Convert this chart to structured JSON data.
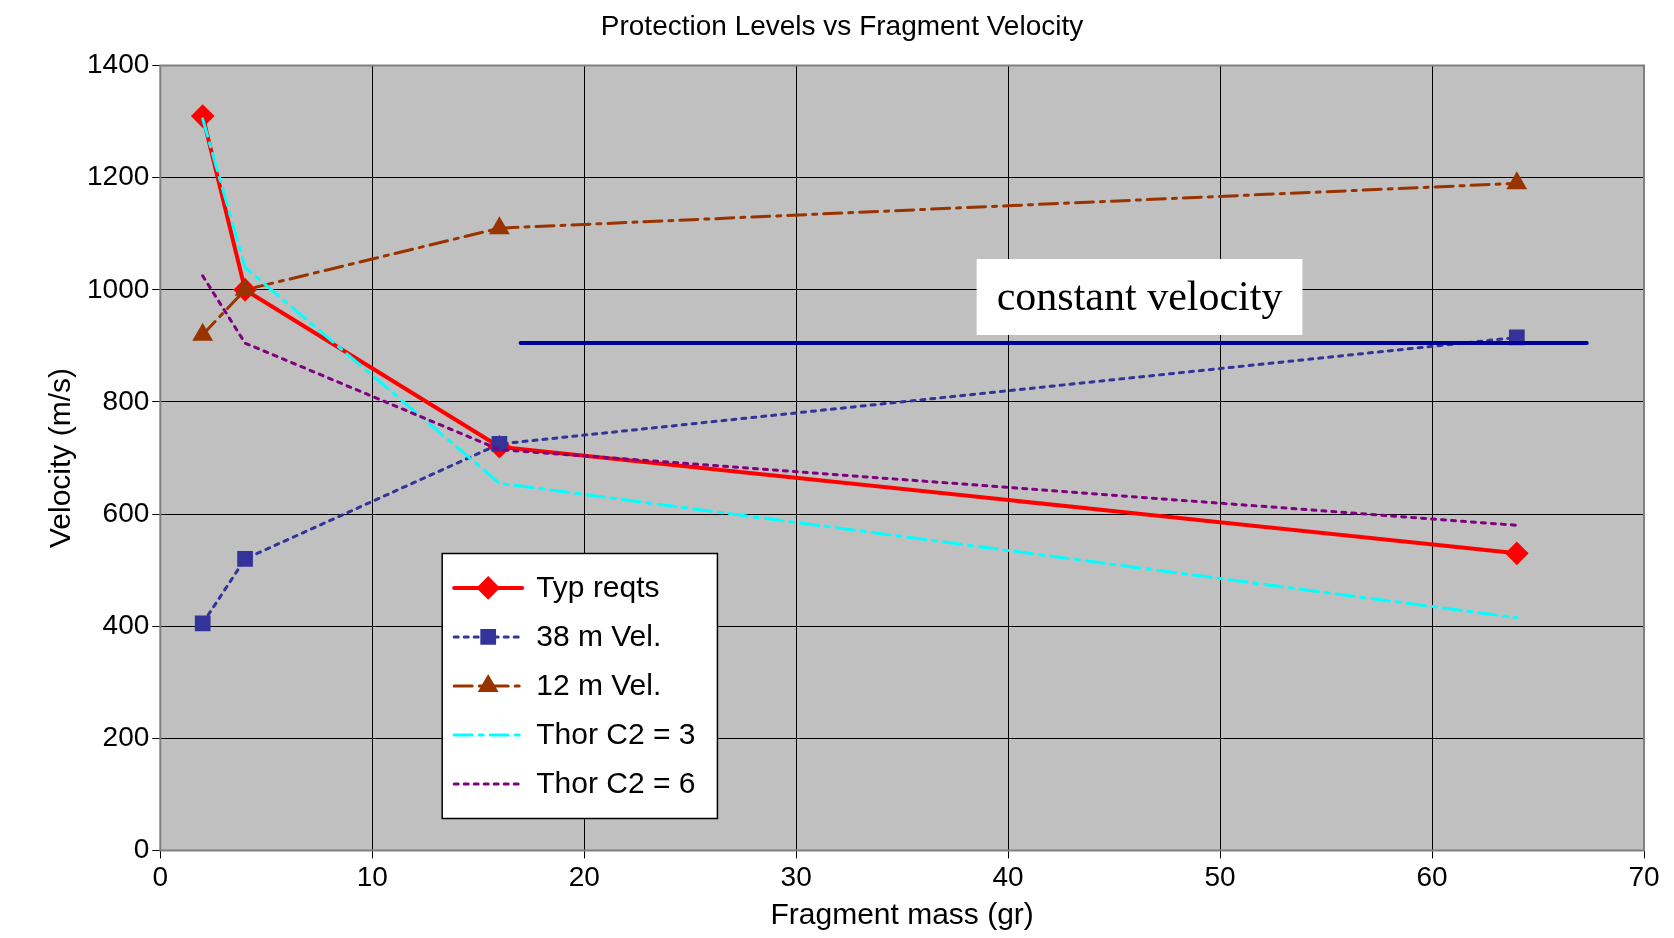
{
  "chart_data": {
    "type": "line",
    "title": "Protection Levels vs Fragment Velocity",
    "xlabel": "Fragment mass (gr)",
    "ylabel": "Velocity (m/s)",
    "xlim": [
      0,
      70
    ],
    "xticks": [
      0,
      10,
      20,
      30,
      40,
      50,
      60,
      70
    ],
    "ylim": [
      0,
      1400
    ],
    "yticks": [
      0,
      200,
      400,
      600,
      800,
      1000,
      1200,
      1400
    ],
    "grid": true,
    "legend": "bottom left",
    "series": [
      {
        "name": "Typ reqts",
        "color": "#ff0000",
        "x": [
          2,
          4,
          16,
          64
        ],
        "values": [
          1310,
          1000,
          720,
          530
        ],
        "marker": "diamond",
        "line_style": "solid"
      },
      {
        "name": "38 m Vel.",
        "color": "#333399",
        "x": [
          2,
          4,
          16,
          64
        ],
        "values": [
          405,
          520,
          725,
          915
        ],
        "marker": "square",
        "line_style": "dotted"
      },
      {
        "name": "12 m Vel.",
        "color": "#993300",
        "x": [
          2,
          4,
          16,
          64
        ],
        "values": [
          920,
          1000,
          1110,
          1190
        ],
        "marker": "triangle",
        "line_style": "dashed"
      },
      {
        "name": "Thor C2 = 3",
        "color": "#00ffff",
        "x": [
          2,
          4,
          16,
          64
        ],
        "values": [
          1305,
          1040,
          655,
          415
        ],
        "marker": "none",
        "line_style": "dashed"
      },
      {
        "name": "Thor C2 = 6",
        "color": "#800080",
        "x": [
          2,
          4,
          16,
          64
        ],
        "values": [
          1025,
          905,
          715,
          580
        ],
        "marker": "none",
        "line_style": "dotted"
      },
      {
        "color": "#000099",
        "x": [
          17,
          67.3
        ],
        "values": [
          905,
          905
        ],
        "marker": "none",
        "line_style": "solid"
      }
    ],
    "annotations": [
      "constant velocity"
    ]
  }
}
